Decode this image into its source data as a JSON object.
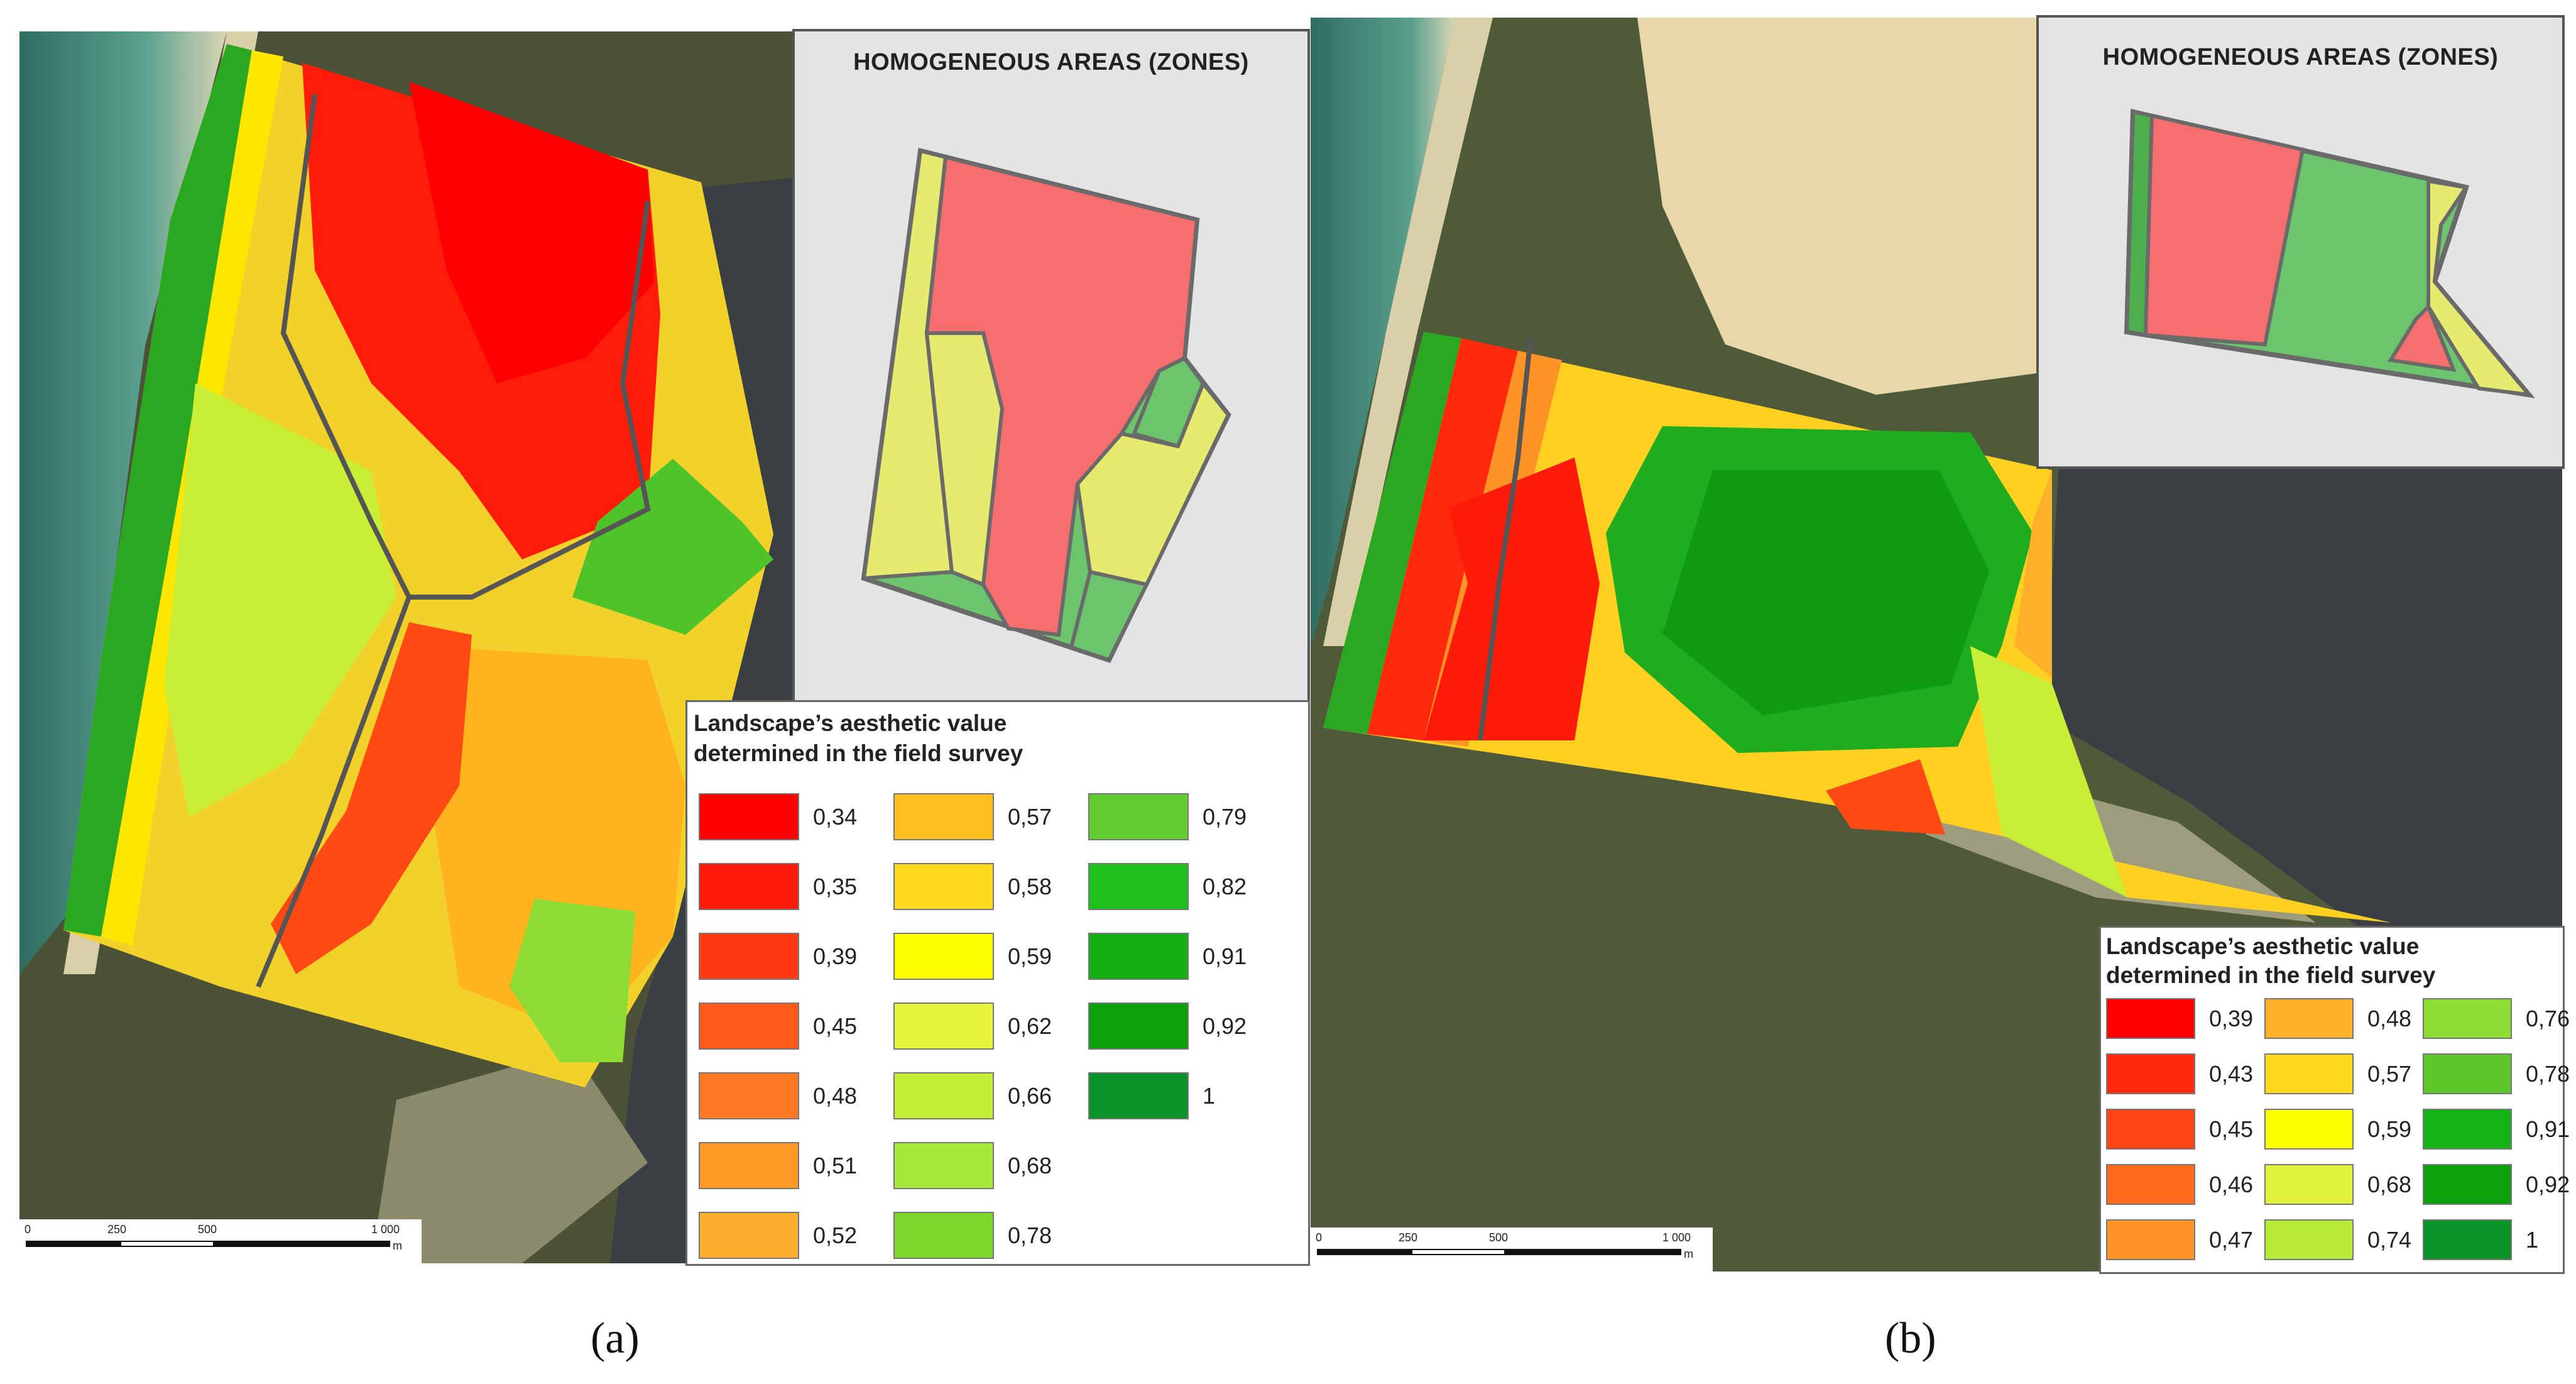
{
  "panels": [
    {
      "caption": "(a)",
      "inset_title": "HOMOGENEOUS AREAS (ZONES)",
      "legend": {
        "title_line1": "Landscape’s aesthetic value",
        "title_line2": "determined in the field survey",
        "items": [
          {
            "value": "0,34",
            "color": "#ff0000"
          },
          {
            "value": "0,35",
            "color": "#ff1a0a"
          },
          {
            "value": "0,39",
            "color": "#ff3a12"
          },
          {
            "value": "0,45",
            "color": "#ff5a1a"
          },
          {
            "value": "0,48",
            "color": "#ff7a22"
          },
          {
            "value": "0,51",
            "color": "#ff9a28"
          },
          {
            "value": "0,52",
            "color": "#ffad2c"
          },
          {
            "value": "0,57",
            "color": "#ffbe1e"
          },
          {
            "value": "0,58",
            "color": "#ffd820"
          },
          {
            "value": "0,59",
            "color": "#ffff00"
          },
          {
            "value": "0,62",
            "color": "#e6f53c"
          },
          {
            "value": "0,66",
            "color": "#c4ef38"
          },
          {
            "value": "0,68",
            "color": "#a6e83c"
          },
          {
            "value": "0,78",
            "color": "#7dd62c"
          },
          {
            "value": "0,79",
            "color": "#62cc30"
          },
          {
            "value": "0,82",
            "color": "#1fc21a"
          },
          {
            "value": "0,91",
            "color": "#12b012"
          },
          {
            "value": "0,92",
            "color": "#0ca00c"
          },
          {
            "value": "1",
            "color": "#0a9428"
          }
        ]
      },
      "scalebar": {
        "labels": [
          "0",
          "250",
          "500",
          "1 000"
        ],
        "unit": "m"
      }
    },
    {
      "caption": "(b)",
      "inset_title": "HOMOGENEOUS AREAS (ZONES)",
      "legend": {
        "title_line1": "Landscape’s aesthetic value",
        "title_line2": "determined in the field survey",
        "items": [
          {
            "value": "0,39",
            "color": "#ff0000"
          },
          {
            "value": "0,43",
            "color": "#ff2a0e"
          },
          {
            "value": "0,45",
            "color": "#ff4414"
          },
          {
            "value": "0,46",
            "color": "#ff6a1c"
          },
          {
            "value": "0,47",
            "color": "#ff9426"
          },
          {
            "value": "0,48",
            "color": "#ffb02a"
          },
          {
            "value": "0,57",
            "color": "#ffd820"
          },
          {
            "value": "0,59",
            "color": "#ffff00"
          },
          {
            "value": "0,68",
            "color": "#e0f23c"
          },
          {
            "value": "0,74",
            "color": "#b8ea38"
          },
          {
            "value": "0,76",
            "color": "#8cdc34"
          },
          {
            "value": "0,78",
            "color": "#5cc82c"
          },
          {
            "value": "0,91",
            "color": "#14b414"
          },
          {
            "value": "0,92",
            "color": "#0ca00c"
          },
          {
            "value": "1",
            "color": "#0a9428"
          }
        ]
      },
      "scalebar": {
        "labels": [
          "0",
          "250",
          "500",
          "1 000"
        ],
        "unit": "m"
      }
    }
  ],
  "zone_colors": {
    "red": "#f66e6e",
    "light_green": "#6cc46c",
    "yellow": "#e6ea6e",
    "dark_green": "#4cae4c",
    "outline": "#6a6a6a"
  }
}
